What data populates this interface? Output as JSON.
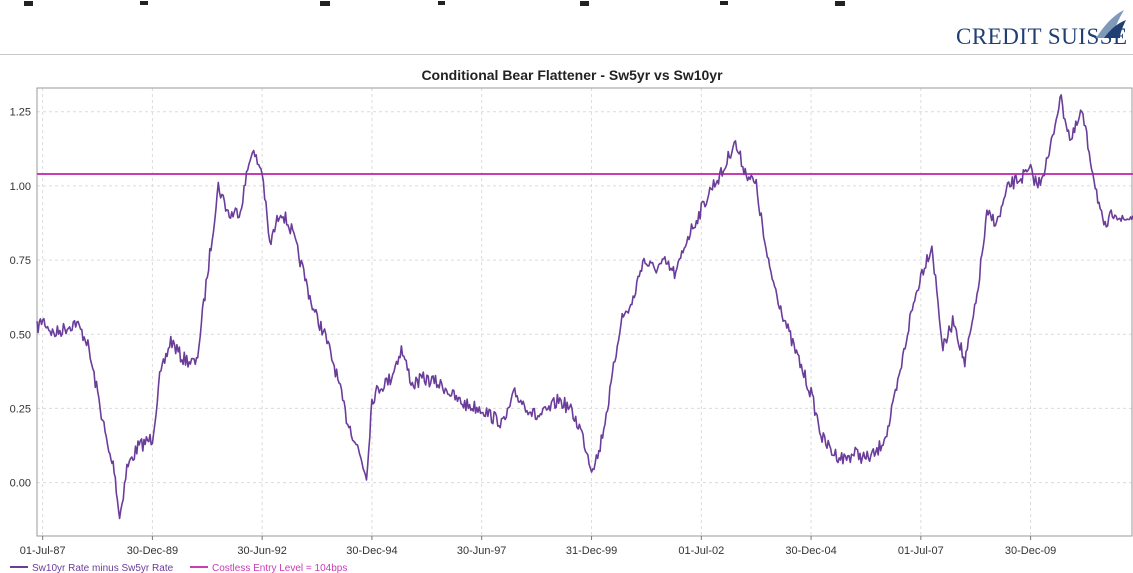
{
  "brand": {
    "name": "CREDIT SUISSE"
  },
  "colors": {
    "series": "#6a3d9a",
    "entry": "#c83cb4",
    "brand": "#1f3f73"
  },
  "chart_data": {
    "type": "line",
    "title": "Conditional Bear Flattener - Sw5yr vs Sw10yr",
    "xlabel": "",
    "ylabel": "",
    "x_range": [
      "1987-05-15",
      "2012-04-30"
    ],
    "ylim": [
      -0.18,
      1.33
    ],
    "y_ticks": [
      0.0,
      0.25,
      0.5,
      0.75,
      1.0,
      1.25
    ],
    "y_tick_labels": [
      "0.00",
      "0.25",
      "0.50",
      "0.75",
      "1.00",
      "1.25"
    ],
    "x_ticks": [
      "1987-07-01",
      "1989-12-30",
      "1992-06-30",
      "1994-12-30",
      "1997-06-30",
      "1999-12-31",
      "2002-07-01",
      "2004-12-30",
      "2007-07-01",
      "2009-12-30"
    ],
    "x_tick_labels": [
      "01-Jul-87",
      "30-Dec-89",
      "30-Jun-92",
      "30-Dec-94",
      "30-Jun-97",
      "31-Dec-99",
      "01-Jul-02",
      "30-Dec-04",
      "01-Jul-07",
      "30-Dec-09"
    ],
    "grid": true,
    "legend_position": "bottom-left",
    "series": [
      {
        "name": "Sw10yr Rate minus Sw5yr Rate",
        "x": [
          "1987-05-15",
          "1987-07-01",
          "1987-10-01",
          "1988-01-01",
          "1988-04-01",
          "1988-07-01",
          "1988-10-01",
          "1989-01-01",
          "1989-02-15",
          "1989-04-01",
          "1989-06-01",
          "1989-09-01",
          "1989-12-30",
          "1990-03-01",
          "1990-06-01",
          "1990-09-01",
          "1991-01-01",
          "1991-04-01",
          "1991-07-01",
          "1991-10-01",
          "1992-01-01",
          "1992-04-01",
          "1992-06-30",
          "1992-09-01",
          "1992-12-01",
          "1993-03-01",
          "1993-06-01",
          "1993-09-01",
          "1993-12-01",
          "1994-03-01",
          "1994-06-01",
          "1994-09-01",
          "1994-11-15",
          "1994-12-30",
          "1995-03-01",
          "1995-06-01",
          "1995-09-01",
          "1995-12-01",
          "1996-03-01",
          "1996-06-01",
          "1996-09-01",
          "1996-12-01",
          "1997-03-01",
          "1997-06-30",
          "1997-10-01",
          "1998-01-01",
          "1998-04-01",
          "1998-07-01",
          "1998-10-01",
          "1999-01-01",
          "1999-04-01",
          "1999-07-01",
          "1999-10-01",
          "1999-12-31",
          "2000-03-01",
          "2000-06-01",
          "2000-09-01",
          "2000-12-01",
          "2001-03-01",
          "2001-06-01",
          "2001-09-01",
          "2001-12-01",
          "2002-03-01",
          "2002-07-01",
          "2002-10-01",
          "2003-01-01",
          "2003-04-01",
          "2003-07-01",
          "2003-10-01",
          "2004-01-01",
          "2004-04-01",
          "2004-07-01",
          "2004-12-30",
          "2005-04-01",
          "2005-07-01",
          "2005-10-01",
          "2006-01-01",
          "2006-04-01",
          "2006-07-01",
          "2006-10-01",
          "2007-01-01",
          "2007-04-01",
          "2007-07-01",
          "2007-10-01",
          "2008-01-01",
          "2008-04-01",
          "2008-07-01",
          "2008-10-01",
          "2009-01-01",
          "2009-04-01",
          "2009-07-01",
          "2009-12-30",
          "2010-03-01",
          "2010-06-01",
          "2010-09-01",
          "2010-12-01",
          "2011-03-01",
          "2011-06-01",
          "2011-09-01",
          "2011-12-01",
          "2012-02-01",
          "2012-04-30"
        ],
        "y": [
          0.52,
          0.55,
          0.5,
          0.52,
          0.54,
          0.48,
          0.3,
          0.1,
          0.05,
          -0.12,
          0.05,
          0.12,
          0.15,
          0.35,
          0.48,
          0.42,
          0.4,
          0.7,
          1.0,
          0.9,
          0.92,
          1.12,
          1.05,
          0.8,
          0.92,
          0.85,
          0.72,
          0.58,
          0.5,
          0.38,
          0.22,
          0.12,
          0.02,
          0.28,
          0.32,
          0.35,
          0.45,
          0.33,
          0.35,
          0.34,
          0.32,
          0.28,
          0.26,
          0.25,
          0.22,
          0.2,
          0.3,
          0.26,
          0.22,
          0.24,
          0.28,
          0.25,
          0.18,
          0.05,
          0.1,
          0.3,
          0.55,
          0.6,
          0.75,
          0.72,
          0.74,
          0.7,
          0.82,
          0.92,
          1.0,
          1.05,
          1.15,
          1.05,
          1.0,
          0.75,
          0.62,
          0.5,
          0.3,
          0.15,
          0.1,
          0.08,
          0.1,
          0.08,
          0.1,
          0.18,
          0.35,
          0.55,
          0.7,
          0.8,
          0.45,
          0.55,
          0.4,
          0.6,
          0.9,
          0.88,
          1.0,
          1.05,
          1.0,
          1.1,
          1.3,
          1.15,
          1.25,
          1.05,
          0.85,
          0.92,
          0.88,
          0.9
        ]
      },
      {
        "name": "Costless Entry Level = 104bps",
        "x": [
          "1987-05-15",
          "2012-04-30"
        ],
        "y": [
          1.04,
          1.04
        ]
      }
    ]
  }
}
